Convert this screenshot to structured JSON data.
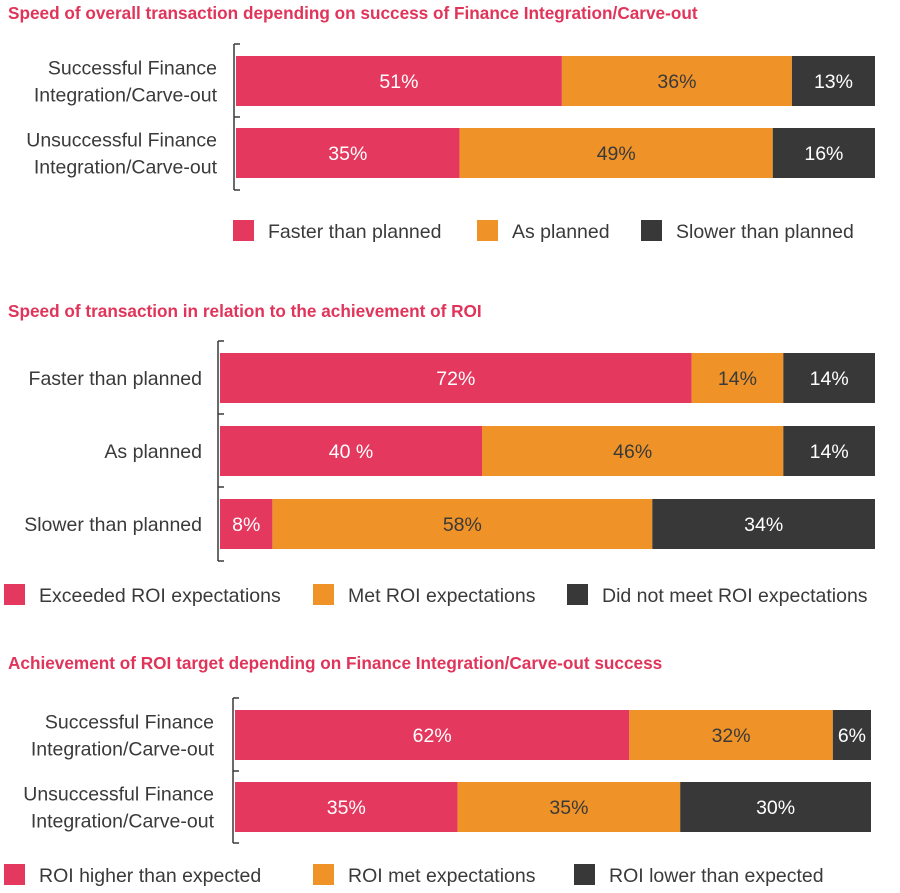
{
  "colors": {
    "title": "#e0345a",
    "pink": "#e5385e",
    "orange": "#ef9227",
    "dark": "#383838",
    "text": "#3a3a3a",
    "axis": "#3a3a3a"
  },
  "chart_data": [
    {
      "type": "bar",
      "stacked": true,
      "orientation": "horizontal",
      "title": "Speed of overall transaction depending on success of Finance Integration/Carve-out",
      "categories": [
        [
          "Successful Finance",
          "Integration/Carve-out"
        ],
        [
          "Unsuccessful Finance",
          "Integration/Carve-out"
        ]
      ],
      "series": [
        {
          "name": "Faster than planned",
          "values": [
            51,
            35
          ],
          "labels": [
            "51%",
            "35%"
          ],
          "color": "pink"
        },
        {
          "name": "As planned",
          "values": [
            36,
            49
          ],
          "labels": [
            "36%",
            "49%"
          ],
          "color": "orange"
        },
        {
          "name": "Slower than planned",
          "values": [
            13,
            16
          ],
          "labels": [
            "13%",
            "16%"
          ],
          "color": "dark"
        }
      ],
      "xlim": [
        0,
        100
      ],
      "grid": false,
      "legend_position": "bottom"
    },
    {
      "type": "bar",
      "stacked": true,
      "orientation": "horizontal",
      "title": "Speed of transaction in relation to the achievement of ROI",
      "categories": [
        [
          "Faster than planned"
        ],
        [
          "As planned"
        ],
        [
          "Slower than planned"
        ]
      ],
      "series": [
        {
          "name": "Exceeded ROI expectations",
          "values": [
            72,
            40,
            8
          ],
          "labels": [
            "72%",
            "40 %",
            "8%"
          ],
          "color": "pink"
        },
        {
          "name": "Met ROI expectations",
          "values": [
            14,
            46,
            58
          ],
          "labels": [
            "14%",
            "46%",
            "58%"
          ],
          "color": "orange"
        },
        {
          "name": "Did not meet ROI expectations",
          "values": [
            14,
            14,
            34
          ],
          "labels": [
            "14%",
            "14%",
            "34%"
          ],
          "color": "dark"
        }
      ],
      "xlim": [
        0,
        100
      ],
      "grid": false,
      "legend_position": "bottom"
    },
    {
      "type": "bar",
      "stacked": true,
      "orientation": "horizontal",
      "title": "Achievement of ROI target depending on Finance Integration/Carve-out success",
      "categories": [
        [
          "Successful Finance",
          "Integration/Carve-out"
        ],
        [
          "Unsuccessful Finance",
          "Integration/Carve-out"
        ]
      ],
      "series": [
        {
          "name": "ROI higher than expected",
          "values": [
            62,
            35
          ],
          "labels": [
            "62%",
            "35%"
          ],
          "color": "pink"
        },
        {
          "name": "ROI met expectations",
          "values": [
            32,
            35
          ],
          "labels": [
            "32%",
            "35%"
          ],
          "color": "orange"
        },
        {
          "name": "ROI lower than expected",
          "values": [
            6,
            30
          ],
          "labels": [
            "6%",
            "30%"
          ],
          "color": "dark"
        }
      ],
      "xlim": [
        0,
        100
      ],
      "grid": false,
      "legend_position": "bottom"
    }
  ]
}
